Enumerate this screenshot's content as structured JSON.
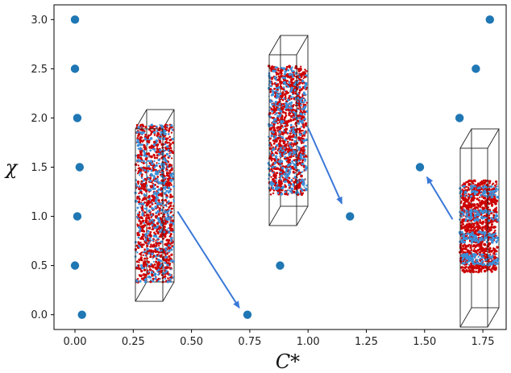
{
  "chart_data": {
    "type": "scatter",
    "xlabel": "C*",
    "ylabel": "χ",
    "xlim": [
      -0.09,
      1.85
    ],
    "ylim": [
      -0.15,
      3.15
    ],
    "x_ticks": [
      0.0,
      0.25,
      0.5,
      0.75,
      1.0,
      1.25,
      1.5,
      1.75
    ],
    "x_tick_labels": [
      "0.00",
      "0.25",
      "0.50",
      "0.75",
      "1.00",
      "1.25",
      "1.50",
      "1.75"
    ],
    "y_ticks": [
      0.0,
      0.5,
      1.0,
      1.5,
      2.0,
      2.5,
      3.0
    ],
    "y_tick_labels": [
      "0.0",
      "0.5",
      "1.0",
      "1.5",
      "2.0",
      "2.5",
      "3.0"
    ],
    "grid": false,
    "marker_color": "#1f77b4",
    "arrow_color": "#3a78d8",
    "points": [
      {
        "x": 0.0,
        "y": 3.0
      },
      {
        "x": 0.0,
        "y": 2.5
      },
      {
        "x": 0.01,
        "y": 2.0
      },
      {
        "x": 0.02,
        "y": 1.5
      },
      {
        "x": 0.01,
        "y": 1.0
      },
      {
        "x": 0.0,
        "y": 0.5
      },
      {
        "x": 0.03,
        "y": 0.0
      },
      {
        "x": 0.74,
        "y": 0.0
      },
      {
        "x": 0.88,
        "y": 0.5
      },
      {
        "x": 1.18,
        "y": 1.0
      },
      {
        "x": 1.48,
        "y": 1.5
      },
      {
        "x": 1.65,
        "y": 2.0
      },
      {
        "x": 1.72,
        "y": 2.5
      },
      {
        "x": 1.78,
        "y": 3.0
      }
    ],
    "insets": [
      {
        "name": "inset-snapshot-left",
        "distribution": "mixed"
      },
      {
        "name": "inset-snapshot-middle",
        "distribution": "mixed"
      },
      {
        "name": "inset-snapshot-right",
        "distribution": "segregated"
      }
    ],
    "inset_colors": {
      "red": "#cc0000",
      "blue": "#3a8fd9"
    },
    "arrows": [
      {
        "from": [
          0.44,
          1.05
        ],
        "to": [
          0.705,
          0.07
        ]
      },
      {
        "from": [
          1.0,
          1.9
        ],
        "to": [
          1.145,
          1.13
        ]
      },
      {
        "from": [
          1.62,
          0.97
        ],
        "to": [
          1.51,
          1.4
        ]
      }
    ]
  }
}
